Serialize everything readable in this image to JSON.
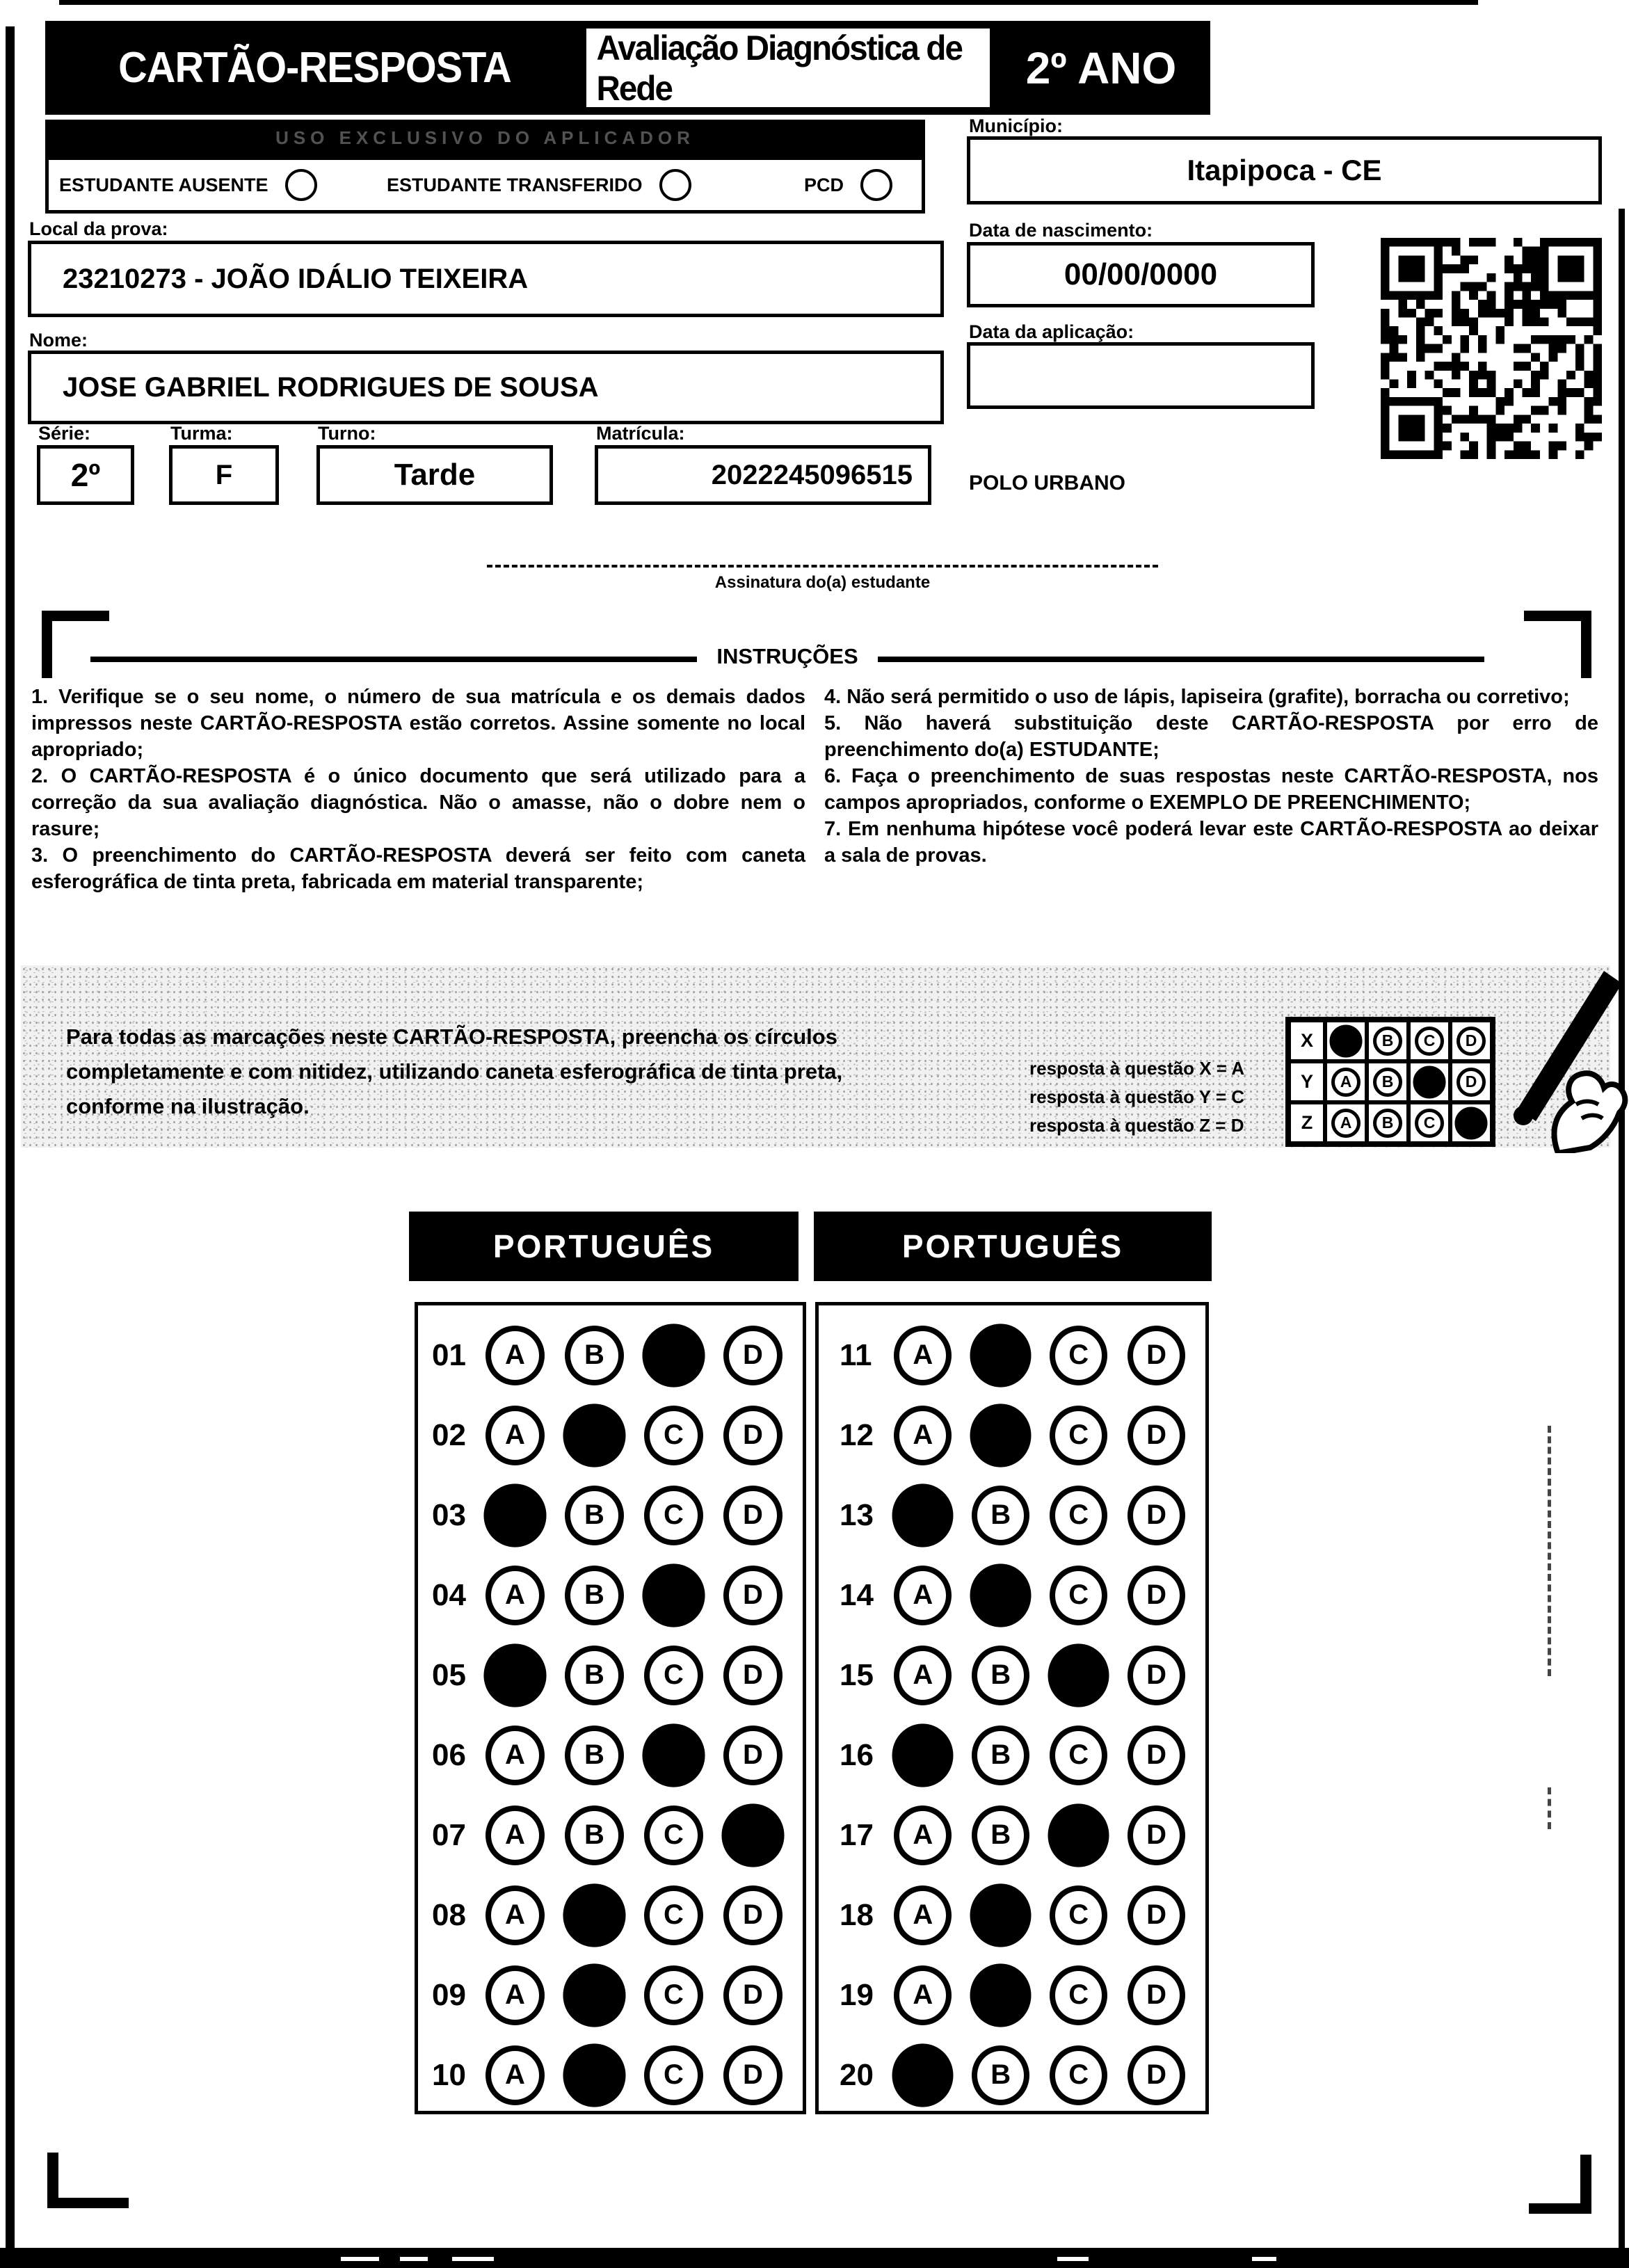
{
  "header": {
    "card_title": "CARTÃO-RESPOSTA",
    "exam_title": "Avaliação Diagnóstica de Rede",
    "grade": "2º ANO"
  },
  "applicator_bar_text": "USO EXCLUSIVO DO APLICADOR",
  "status_row": {
    "options": [
      {
        "label": "ESTUDANTE AUSENTE"
      },
      {
        "label": "ESTUDANTE TRANSFERIDO"
      },
      {
        "label": "PCD"
      }
    ]
  },
  "student": {
    "local_label": "Local da prova:",
    "local_value": "23210273 - JOÃO IDÁLIO TEIXEIRA",
    "nome_label": "Nome:",
    "nome_value": "JOSE GABRIEL RODRIGUES DE SOUSA",
    "serie_label": "Série:",
    "serie_value": "2º",
    "turma_label": "Turma:",
    "turma_value": "F",
    "turno_label": "Turno:",
    "turno_value": "Tarde",
    "matricula_label": "Matrícula:",
    "matricula_value": "2022245096515",
    "municipio_label": "Município:",
    "municipio_value": "Itapipoca - CE",
    "nascimento_label": "Data de nascimento:",
    "nascimento_value": "00/00/0000",
    "aplicacao_label": "Data da aplicação:",
    "aplicacao_value": "",
    "polo": "POLO URBANO"
  },
  "signature": {
    "caption": "Assinatura do(a) estudante"
  },
  "instructions": {
    "title": "INSTRUÇÕES",
    "left_column": [
      "1. Verifique se o seu nome, o número de sua matrícula e os demais dados impressos neste CARTÃO-RESPOSTA estão corretos. Assine somente no local apropriado;",
      "2. O CARTÃO-RESPOSTA é o único documento que será utilizado para a correção da sua avaliação diagnóstica. Não o amasse, não o dobre nem o rasure;",
      "3. O preenchimento do CARTÃO-RESPOSTA deverá ser feito com caneta esferográfica de tinta preta, fabricada em material transparente;"
    ],
    "right_column": [
      "4. Não será permitido o uso de lápis, lapiseira (grafite), borracha ou corretivo;",
      "5. Não haverá substituição deste CARTÃO-RESPOSTA por erro de preenchimento do(a) ESTUDANTE;",
      "6. Faça o preenchimento de suas respostas neste CARTÃO-RESPOSTA, nos campos apropriados, conforme o EXEMPLO DE PREENCHIMENTO;",
      "7. Em nenhuma hipótese você poderá levar este CARTÃO-RESPOSTA ao deixar a sala de provas."
    ]
  },
  "marking_example": {
    "note": "Para todas as marcações neste CARTÃO-RESPOSTA, preencha os círculos completamente e com nitidez, utilizando caneta esferográfica de tinta preta, conforme na ilustração.",
    "legend": [
      "resposta à questão X = A",
      "resposta à questão Y = C",
      "resposta à questão Z = D"
    ],
    "grid": {
      "options": [
        "A",
        "B",
        "C",
        "D"
      ],
      "rows": [
        {
          "label": "X",
          "filled": "A"
        },
        {
          "label": "Y",
          "filled": "C"
        },
        {
          "label": "Z",
          "filled": "D"
        }
      ]
    }
  },
  "answer_sheet": {
    "options": [
      "A",
      "B",
      "C",
      "D"
    ],
    "blocks": [
      {
        "subject": "PORTUGUÊS",
        "questions": [
          {
            "number": "01",
            "marked": "C"
          },
          {
            "number": "02",
            "marked": "B"
          },
          {
            "number": "03",
            "marked": "A"
          },
          {
            "number": "04",
            "marked": "C"
          },
          {
            "number": "05",
            "marked": "A"
          },
          {
            "number": "06",
            "marked": "C"
          },
          {
            "number": "07",
            "marked": "D"
          },
          {
            "number": "08",
            "marked": "B"
          },
          {
            "number": "09",
            "marked": "B"
          },
          {
            "number": "10",
            "marked": "B"
          }
        ]
      },
      {
        "subject": "PORTUGUÊS",
        "questions": [
          {
            "number": "11",
            "marked": "B"
          },
          {
            "number": "12",
            "marked": "B"
          },
          {
            "number": "13",
            "marked": "A"
          },
          {
            "number": "14",
            "marked": "B"
          },
          {
            "number": "15",
            "marked": "C"
          },
          {
            "number": "16",
            "marked": "A"
          },
          {
            "number": "17",
            "marked": "C"
          },
          {
            "number": "18",
            "marked": "B"
          },
          {
            "number": "19",
            "marked": "B"
          },
          {
            "number": "20",
            "marked": "A"
          }
        ]
      }
    ]
  },
  "colors": {
    "ink": "#000000",
    "paper": "#ffffff",
    "banner_bg": "#f1f1f1"
  }
}
